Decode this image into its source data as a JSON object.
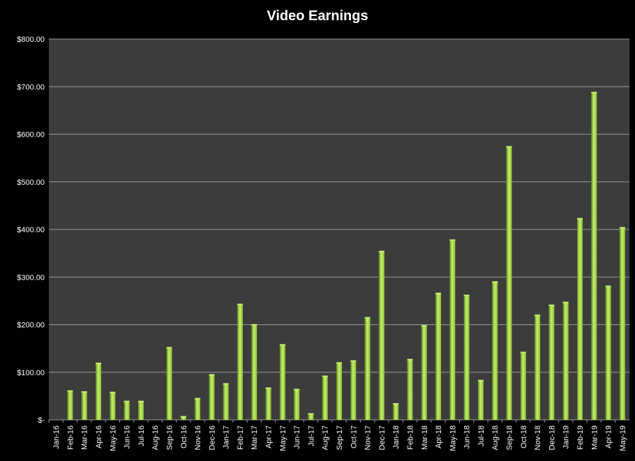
{
  "chart_data": {
    "type": "bar",
    "title": "Video Earnings",
    "xlabel": "",
    "ylabel": "",
    "ylim": [
      0,
      800
    ],
    "yticks": [
      0,
      100,
      200,
      300,
      400,
      500,
      600,
      700,
      800
    ],
    "ytick_labels": [
      "$-",
      "$100.00",
      "$200.00",
      "$300.00",
      "$400.00",
      "$500.00",
      "$600.00",
      "$700.00",
      "$800.00"
    ],
    "grid": true,
    "categories": [
      "Jan-16",
      "Feb-16",
      "Mar-16",
      "Apr-16",
      "May-16",
      "Jun-16",
      "Jul-16",
      "Aug-16",
      "Sep-16",
      "Oct-16",
      "Nov-16",
      "Dec-16",
      "Jan-17",
      "Feb-17",
      "Mar-17",
      "Apr-17",
      "May-17",
      "Jun-17",
      "Jul-17",
      "Aug-17",
      "Sep-17",
      "Oct-17",
      "Nov-17",
      "Dec-17",
      "Jan-18",
      "Feb-18",
      "Mar-18",
      "Apr-18",
      "May-18",
      "Jun-18",
      "Jul-18",
      "Aug-18",
      "Sep-18",
      "Oct-18",
      "Nov-18",
      "Dec-18",
      "Jan-19",
      "Feb-19",
      "Mar-19",
      "Apr-19",
      "May-19"
    ],
    "values": [
      0,
      62,
      60,
      120,
      59,
      40,
      40,
      0,
      153,
      8,
      46,
      96,
      77,
      244,
      201,
      68,
      159,
      65,
      14,
      93,
      121,
      125,
      216,
      355,
      35,
      128,
      199,
      267,
      379,
      263,
      84,
      291,
      575,
      143,
      221,
      242,
      248,
      424,
      689,
      282,
      405
    ],
    "colors": {
      "bar": "#8cbf2e",
      "bar_light": "#c8ee6e",
      "bar_dark": "#5a8a1c",
      "plot_bg": "#3c3c3c",
      "grid": "#9a9a9a",
      "page_bg": "#000000",
      "text": "#ffffff"
    }
  }
}
